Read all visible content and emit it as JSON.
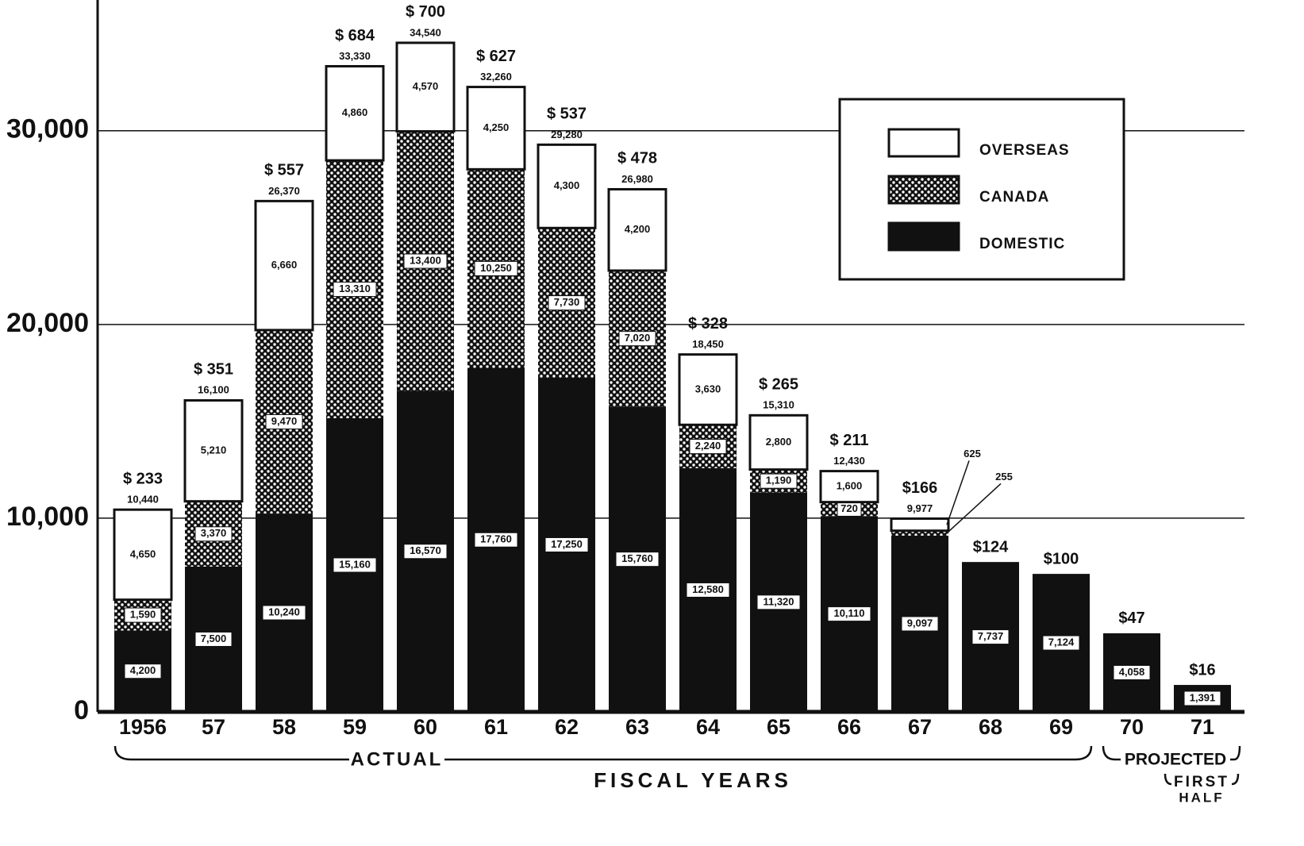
{
  "chart_data": {
    "type": "stacked_bar",
    "categories": [
      "1956",
      "57",
      "58",
      "59",
      "60",
      "61",
      "62",
      "63",
      "64",
      "65",
      "66",
      "67",
      "68",
      "69",
      "70",
      "71"
    ],
    "series": [
      {
        "name": "DOMESTIC",
        "color": "#111111",
        "values": [
          4200,
          7500,
          10240,
          15160,
          16570,
          17760,
          17250,
          15760,
          12580,
          11320,
          10110,
          9097,
          7737,
          7124,
          4058,
          1391
        ],
        "value_labels": [
          "4,200",
          "7,500",
          "10,240",
          "15,160",
          "16,570",
          "17,760",
          "17,250",
          "15,760",
          "12,580",
          "11,320",
          "10,110",
          "9,097",
          "7,737",
          "7,124",
          "4,058",
          "1,391"
        ]
      },
      {
        "name": "CANADA",
        "color": "dots",
        "values": [
          1590,
          3370,
          9470,
          13310,
          13400,
          10250,
          7730,
          7020,
          2240,
          1190,
          720,
          255,
          null,
          null,
          null,
          null
        ],
        "value_labels": [
          "1,590",
          "3,370",
          "9,470",
          "13,310",
          "13,400",
          "10,250",
          "7,730",
          "7,020",
          "2,240",
          "1,190",
          "720",
          "255",
          null,
          null,
          null,
          null
        ]
      },
      {
        "name": "OVERSEAS",
        "color": "#ffffff",
        "values": [
          4650,
          5210,
          6660,
          4860,
          4570,
          4250,
          4300,
          4200,
          3630,
          2800,
          1600,
          625,
          null,
          null,
          null,
          null
        ],
        "value_labels": [
          "4,650",
          "5,210",
          "6,660",
          "4,860",
          "4,570",
          "4,250",
          "4,300",
          "4,200",
          "3,630",
          "2,800",
          "1,600",
          "625",
          null,
          null,
          null,
          null
        ]
      }
    ],
    "totals": {
      "values": [
        10440,
        16100,
        26370,
        33330,
        34540,
        32260,
        29280,
        26980,
        18450,
        15310,
        12430,
        9977,
        null,
        null,
        null,
        null
      ],
      "value_labels": [
        "10,440",
        "16,100",
        "26,370",
        "33,330",
        "34,540",
        "32,260",
        "29,280",
        "26,980",
        "18,450",
        "15,310",
        "12,430",
        "9,977",
        null,
        null,
        null,
        null
      ]
    },
    "dollar_labels": [
      "$ 233",
      "$ 351",
      "$ 557",
      "$ 684",
      "$ 700",
      "$ 627",
      "$ 537",
      "$ 478",
      "$ 328",
      "$ 265",
      "$ 211",
      "$166",
      "$124",
      "$100",
      "$47",
      "$16"
    ],
    "ylim": [
      0,
      36750
    ],
    "yticks": [
      0,
      {
        "value": 10000,
        "label": "10,000"
      },
      {
        "value": 20000,
        "label": "20,000"
      },
      {
        "value": 30000,
        "label": "30,000"
      }
    ],
    "grid": true,
    "legend": "upper right",
    "x_label": "FISCAL YEARS",
    "annotations": {
      "actual": "ACTUAL",
      "projected": "PROJECTED",
      "first": "FIRST",
      "half": "HALF"
    }
  }
}
